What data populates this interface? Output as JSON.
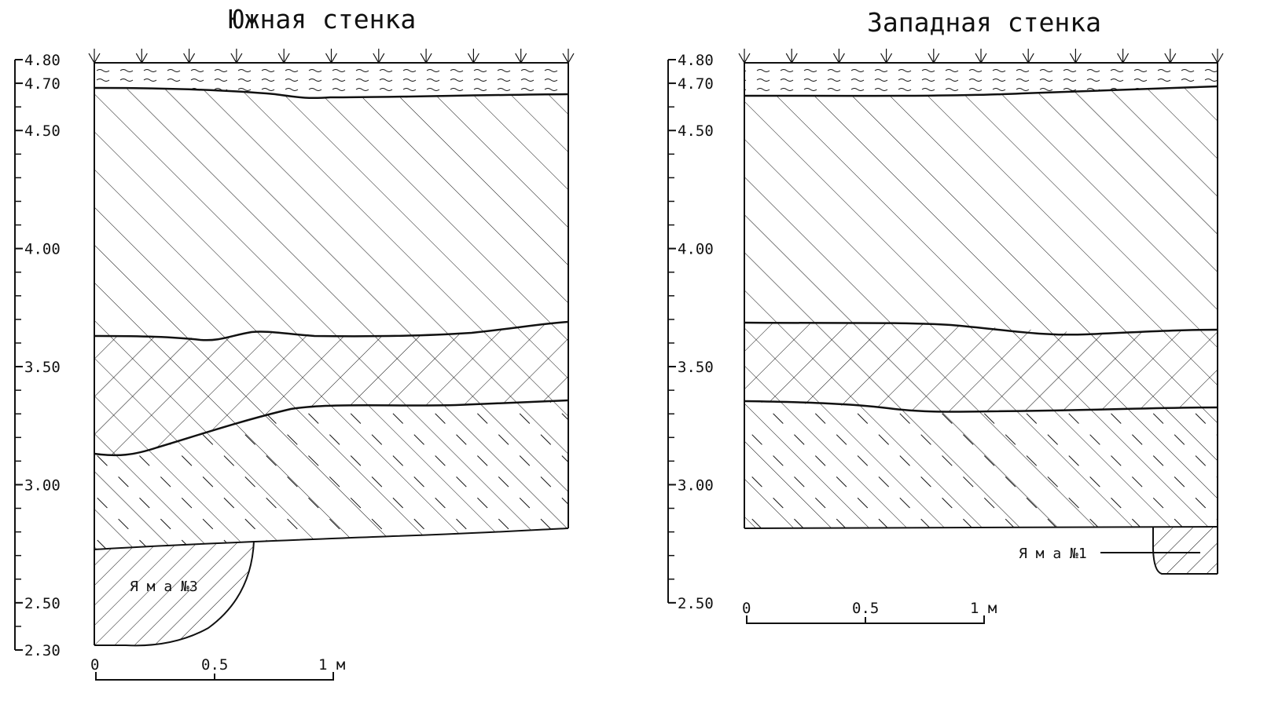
{
  "colors": {
    "ink": "#111111",
    "background": "#ffffff"
  },
  "panels": [
    {
      "id": "south",
      "title": "Южная стенка",
      "pit_label": "Я м а   №3",
      "scale_labels": [
        "0",
        "0.5",
        "1 м"
      ]
    },
    {
      "id": "west",
      "title": "Западная стенка",
      "pit_label": "Я м а   №1",
      "scale_labels": [
        "0",
        "0.5",
        "1 м"
      ]
    }
  ],
  "elevation_axis": {
    "ticks": [
      "4.80",
      "4.70",
      "4.50",
      "4.00",
      "3.50",
      "3.00",
      "2.50",
      "2.30"
    ],
    "unit": "м"
  },
  "legend_patterns": [
    "dashed-hatch-top-layer",
    "diagonal-hatch",
    "cross-hatch",
    "diagonal-dashed-hatch",
    "pit-back-hatch"
  ]
}
